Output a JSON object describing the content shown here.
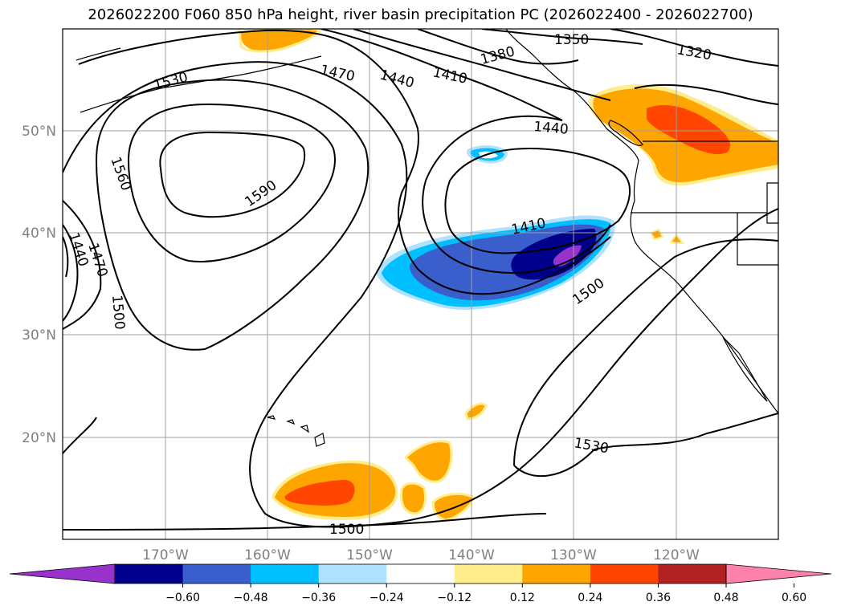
{
  "title": "2026022200 F060 850 hPa height, river basin precipitation PC (2026022400 - 2026022700)",
  "map": {
    "lat_ticks": [
      "50°N",
      "40°N",
      "30°N",
      "20°N"
    ],
    "lon_ticks": [
      "170°W",
      "160°W",
      "150°W",
      "140°W",
      "130°W",
      "120°W"
    ],
    "gridlines": true,
    "contour_labels": [
      "1350",
      "1320",
      "1380",
      "1410",
      "1440",
      "1470",
      "1530",
      "1440",
      "1560",
      "1590",
      "1410",
      "1500",
      "1440",
      "1470",
      "1500",
      "1530",
      "1500"
    ]
  },
  "colorbar": {
    "ticks": [
      "−0.60",
      "−0.48",
      "−0.36",
      "−0.24",
      "−0.12",
      "0.12",
      "0.24",
      "0.36",
      "0.48",
      "0.60"
    ],
    "colors": [
      "#9932CC",
      "#00008B",
      "#3A5FCD",
      "#00BFFF",
      "#B0E2FF",
      "#FFFFFF",
      "#FFEC8B",
      "#FFA500",
      "#FF4500",
      "#B22222",
      "#FF82AB"
    ]
  },
  "colors": {
    "coast": "#000000",
    "grid": "#a0a0a0",
    "contour": "#000000"
  }
}
